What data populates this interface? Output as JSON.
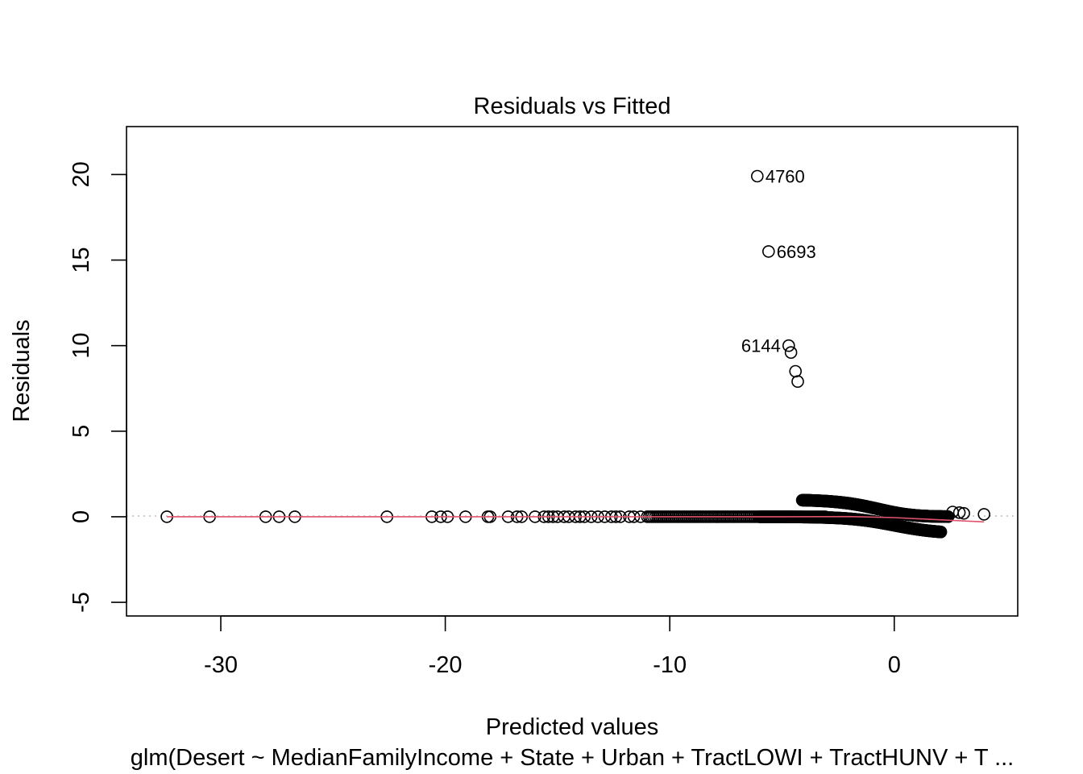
{
  "chart_data": {
    "type": "scatter",
    "title": "Residuals vs Fitted",
    "xlabel": "Predicted values",
    "ylabel": "Residuals",
    "subtitle": "glm(Desert ~ MedianFamilyIncome + State + Urban + TractLOWI + TractHUNV + T ...",
    "xlim": [
      -34.2,
      5.5
    ],
    "ylim": [
      -5.8,
      22.8
    ],
    "x_ticks": [
      -30,
      -20,
      -10,
      0
    ],
    "y_ticks": [
      -5,
      0,
      5,
      10,
      15,
      20
    ],
    "x_tick_labels": [
      "-30",
      "-20",
      "-10",
      "0"
    ],
    "y_tick_labels": [
      "-5",
      "0",
      "5",
      "10",
      "15",
      "20"
    ],
    "grid": false,
    "reference_line": {
      "y": 0,
      "style": "dotted",
      "color": "#bebebe"
    },
    "smoother_color": "#DF536B",
    "point_color": "#000000",
    "smoother": [
      {
        "x": -32.4,
        "y": 0.0
      },
      {
        "x": -20.0,
        "y": 0.0
      },
      {
        "x": -10.0,
        "y": 0.0
      },
      {
        "x": -5.0,
        "y": 0.0
      },
      {
        "x": -2.0,
        "y": 0.01
      },
      {
        "x": 0.0,
        "y": -0.05
      },
      {
        "x": 2.0,
        "y": -0.18
      },
      {
        "x": 4.0,
        "y": -0.3
      }
    ],
    "annotations": [
      {
        "label": "4760",
        "x": -6.1,
        "y": 19.9,
        "side": "right"
      },
      {
        "label": "6693",
        "x": -5.6,
        "y": 15.5,
        "side": "right"
      },
      {
        "label": "6144",
        "x": -4.7,
        "y": 10.0,
        "side": "left"
      }
    ],
    "isolated_points": [
      {
        "x": -32.4,
        "y": 0
      },
      {
        "x": -30.5,
        "y": 0
      },
      {
        "x": -28.0,
        "y": 0
      },
      {
        "x": -27.4,
        "y": 0
      },
      {
        "x": -26.7,
        "y": 0
      },
      {
        "x": -22.6,
        "y": 0
      },
      {
        "x": -20.6,
        "y": 0
      },
      {
        "x": -20.2,
        "y": 0
      },
      {
        "x": -19.9,
        "y": 0
      },
      {
        "x": -19.1,
        "y": 0
      },
      {
        "x": -18.1,
        "y": 0
      },
      {
        "x": -18.0,
        "y": 0
      },
      {
        "x": -17.2,
        "y": 0
      },
      {
        "x": -16.8,
        "y": 0
      },
      {
        "x": -16.6,
        "y": 0
      },
      {
        "x": -6.1,
        "y": 19.9
      },
      {
        "x": -5.6,
        "y": 15.5
      },
      {
        "x": -4.7,
        "y": 10.0
      },
      {
        "x": -4.6,
        "y": 9.6
      },
      {
        "x": -4.4,
        "y": 8.5
      },
      {
        "x": -4.3,
        "y": 7.9
      },
      {
        "x": 2.6,
        "y": 0.28
      },
      {
        "x": 2.9,
        "y": 0.24
      },
      {
        "x": 3.1,
        "y": 0.2
      },
      {
        "x": 4.0,
        "y": 0.14
      }
    ],
    "dense_series": [
      {
        "name": "flat band",
        "x_range": [
          -16.0,
          -3.0
        ],
        "relation": "y = 0"
      },
      {
        "name": "upper branch",
        "x_range": [
          -4.1,
          2.4
        ],
        "relation": "y = 1 / (1 + exp(x))"
      },
      {
        "name": "lower branch",
        "x_range": [
          -6.0,
          2.1
        ],
        "relation": "y = -1 / (1 + exp(-x))"
      }
    ]
  }
}
